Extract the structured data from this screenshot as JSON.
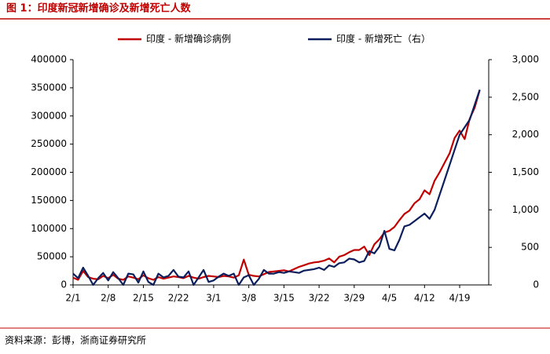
{
  "chart_data": {
    "type": "line",
    "title": "图 1：印度新冠新增确诊及新增死亡人数",
    "source": "资料来源：彭博，浙商证券研究所",
    "categories": [
      "2/1",
      null,
      null,
      null,
      null,
      null,
      null,
      "2/8",
      null,
      null,
      null,
      null,
      null,
      null,
      "2/15",
      null,
      null,
      null,
      null,
      null,
      null,
      "2/22",
      null,
      null,
      null,
      null,
      null,
      null,
      "3/1",
      null,
      null,
      null,
      null,
      null,
      null,
      "3/8",
      null,
      null,
      null,
      null,
      null,
      null,
      "3/15",
      null,
      null,
      null,
      null,
      null,
      null,
      "3/22",
      null,
      null,
      null,
      null,
      null,
      null,
      "3/29",
      null,
      null,
      null,
      null,
      null,
      null,
      "4/5",
      null,
      null,
      null,
      null,
      null,
      null,
      "4/12",
      null,
      null,
      null,
      null,
      null,
      null,
      "4/19",
      null,
      null,
      null,
      null
    ],
    "series": [
      {
        "name": "印度 - 新增确诊病例",
        "color": "#c00000",
        "axis": "y",
        "values": [
          13000,
          9000,
          25000,
          14000,
          11000,
          10000,
          16000,
          12000,
          18000,
          11000,
          9000,
          15000,
          13000,
          10000,
          17000,
          12000,
          9000,
          14000,
          11000,
          13000,
          15000,
          14000,
          12000,
          16000,
          13000,
          11000,
          14000,
          16000,
          15000,
          14000,
          16000,
          15000,
          13000,
          17000,
          45000,
          18000,
          16000,
          15000,
          19000,
          23000,
          24000,
          25000,
          26000,
          24000,
          28000,
          32000,
          35000,
          38000,
          40000,
          41000,
          43000,
          47000,
          40000,
          50000,
          53000,
          58000,
          62000,
          62000,
          68000,
          53000,
          72000,
          81000,
          93000,
          96000,
          103000,
          115000,
          126000,
          132000,
          145000,
          152000,
          168000,
          161000,
          185000,
          200000,
          217000,
          234000,
          261000,
          274000,
          259000,
          295000,
          315000,
          346000
        ]
      },
      {
        "name": "印度 - 新增死亡（右）",
        "color": "#0c1f5c",
        "axis": "y2",
        "values": [
          150,
          90,
          230,
          120,
          0,
          90,
          160,
          60,
          170,
          90,
          0,
          150,
          140,
          30,
          180,
          40,
          0,
          150,
          100,
          120,
          200,
          110,
          100,
          180,
          0,
          100,
          200,
          40,
          60,
          110,
          150,
          120,
          150,
          0,
          100,
          130,
          0,
          80,
          200,
          150,
          150,
          170,
          160,
          180,
          170,
          160,
          190,
          200,
          210,
          230,
          200,
          260,
          240,
          290,
          300,
          350,
          340,
          300,
          320,
          450,
          420,
          510,
          720,
          480,
          460,
          600,
          780,
          800,
          850,
          900,
          950,
          880,
          1000,
          1200,
          1400,
          1600,
          1800,
          2000,
          2100,
          2200,
          2400,
          2600
        ]
      }
    ],
    "ylim": [
      0,
      400000
    ],
    "yticks": [
      0,
      50000,
      100000,
      150000,
      200000,
      250000,
      300000,
      350000,
      400000
    ],
    "y2lim": [
      0,
      3000
    ],
    "y2ticks": [
      0,
      500,
      {
        "value": 1000,
        "label": "1,000"
      },
      {
        "value": 1500,
        "label": "1,500"
      },
      {
        "value": 2000,
        "label": "2,000"
      },
      {
        "value": 2500,
        "label": "2,500"
      },
      {
        "value": 3000,
        "label": "3,000"
      }
    ],
    "legend": "top"
  }
}
